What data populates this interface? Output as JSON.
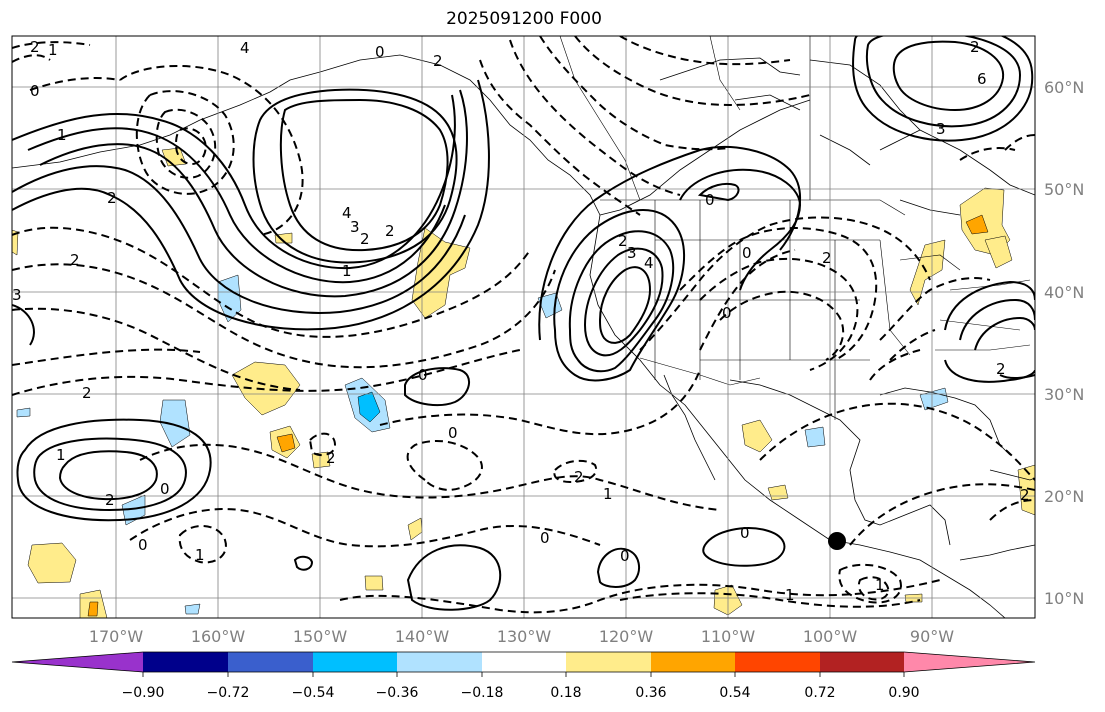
{
  "title": "2025091200 F000",
  "map": {
    "projection": "plate-carree",
    "region": "Northeast Pacific / North America",
    "lat_labels": [
      "10°N",
      "20°N",
      "30°N",
      "40°N",
      "50°N",
      "60°N"
    ],
    "lon_labels": [
      "170°W",
      "160°W",
      "150°W",
      "140°W",
      "130°W",
      "120°W",
      "110°W",
      "100°W",
      "90°W"
    ],
    "marker": {
      "label": "point-marker",
      "color": "#000000"
    }
  },
  "contour_labels": [
    "2",
    "1",
    "0",
    "4",
    "0",
    "2",
    "6",
    "3",
    "2",
    "1",
    "2",
    "4",
    "3",
    "2",
    "2",
    "3",
    "2",
    "1",
    "2",
    "0",
    "2",
    "3",
    "4",
    "0",
    "2",
    "0",
    "2",
    "1",
    "2",
    "0",
    "0",
    "2",
    "1",
    "0",
    "0",
    "0",
    "2",
    "1",
    "1",
    "0",
    "0",
    "1",
    "2"
  ],
  "colorbar": {
    "ticks": [
      "−0.90",
      "−0.72",
      "−0.54",
      "−0.36",
      "−0.18",
      "0.18",
      "0.36",
      "0.54",
      "0.72",
      "0.90"
    ],
    "colors": [
      "#9932cc",
      "#00008b",
      "#3a5fcd",
      "#00bfff",
      "#b0e2ff",
      "#ffffff",
      "#ffec8b",
      "#ffa500",
      "#ff4500",
      "#b22222",
      "#ff88aa"
    ]
  }
}
